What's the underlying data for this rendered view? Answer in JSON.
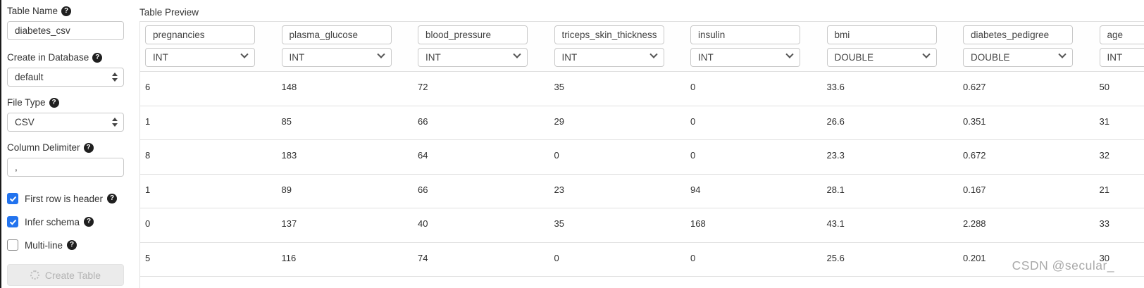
{
  "icons": {
    "help": "?"
  },
  "colors": {
    "accent_checkbox": "#2273ee",
    "table_border": "#e0e0e0",
    "disabled_button_bg": "#ebebeb",
    "watermark_gray": "#a9a9a9"
  },
  "sidebar": {
    "table_name": {
      "label": "Table Name",
      "value": "diabetes_csv"
    },
    "database": {
      "label": "Create in Database",
      "value": "default"
    },
    "file_type": {
      "label": "File Type",
      "value": "CSV"
    },
    "delimiter": {
      "label": "Column Delimiter",
      "value": ","
    },
    "checkboxes": [
      {
        "label": "First row is header",
        "checked": true
      },
      {
        "label": "Infer schema",
        "checked": true
      },
      {
        "label": "Multi-line",
        "checked": false
      }
    ],
    "create_button": {
      "label": "Create Table",
      "disabled": true
    }
  },
  "preview": {
    "title": "Table Preview",
    "columns": [
      {
        "name": "pregnancies",
        "type": "INT"
      },
      {
        "name": "plasma_glucose",
        "type": "INT"
      },
      {
        "name": "blood_pressure",
        "type": "INT"
      },
      {
        "name": "triceps_skin_thickness",
        "type": "INT"
      },
      {
        "name": "insulin",
        "type": "INT"
      },
      {
        "name": "bmi",
        "type": "DOUBLE"
      },
      {
        "name": "diabetes_pedigree",
        "type": "DOUBLE"
      },
      {
        "name": "age",
        "type": "INT"
      }
    ],
    "rows": [
      [
        "6",
        "148",
        "72",
        "35",
        "0",
        "33.6",
        "0.627",
        "50"
      ],
      [
        "1",
        "85",
        "66",
        "29",
        "0",
        "26.6",
        "0.351",
        "31"
      ],
      [
        "8",
        "183",
        "64",
        "0",
        "0",
        "23.3",
        "0.672",
        "32"
      ],
      [
        "1",
        "89",
        "66",
        "23",
        "94",
        "28.1",
        "0.167",
        "21"
      ],
      [
        "0",
        "137",
        "40",
        "35",
        "168",
        "43.1",
        "2.288",
        "33"
      ],
      [
        "5",
        "116",
        "74",
        "0",
        "0",
        "25.6",
        "0.201",
        "30"
      ]
    ]
  },
  "watermark": "CSDN @secular_"
}
